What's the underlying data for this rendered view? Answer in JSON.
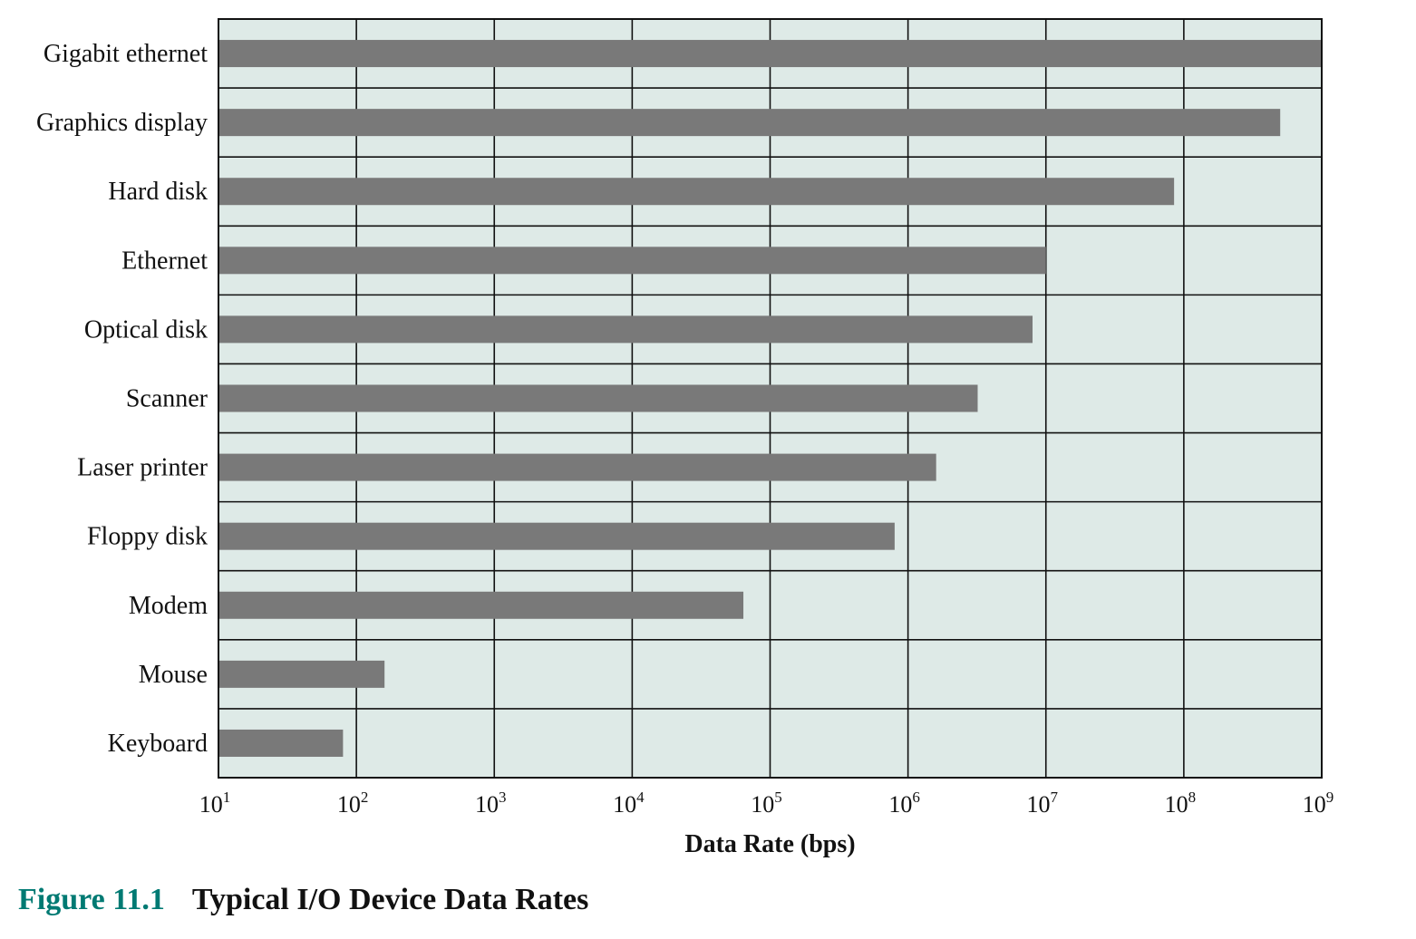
{
  "chart_data": {
    "type": "bar",
    "orientation": "horizontal",
    "xscale": "log",
    "xlim": [
      10,
      1000000000
    ],
    "xlabel": "Data Rate (bps)",
    "x_ticks": [
      {
        "base": "10",
        "exp": "1"
      },
      {
        "base": "10",
        "exp": "2"
      },
      {
        "base": "10",
        "exp": "3"
      },
      {
        "base": "10",
        "exp": "4"
      },
      {
        "base": "10",
        "exp": "5"
      },
      {
        "base": "10",
        "exp": "6"
      },
      {
        "base": "10",
        "exp": "7"
      },
      {
        "base": "10",
        "exp": "8"
      },
      {
        "base": "10",
        "exp": "9"
      }
    ],
    "categories": [
      "Gigabit ethernet",
      "Graphics display",
      "Hard disk",
      "Ethernet",
      "Optical disk",
      "Scanner",
      "Laser printer",
      "Floppy disk",
      "Modem",
      "Mouse",
      "Keyboard"
    ],
    "values": [
      1000000000,
      500000000,
      85000000,
      10000000,
      8000000,
      3200000,
      1600000,
      800000,
      64000,
      160,
      80
    ],
    "grid": true,
    "colors": {
      "plot_bg": "#deeae7",
      "bar": "#797979",
      "grid": "#111111"
    }
  },
  "caption": {
    "number": "Figure 11.1",
    "title": "Typical I/O Device Data Rates"
  }
}
